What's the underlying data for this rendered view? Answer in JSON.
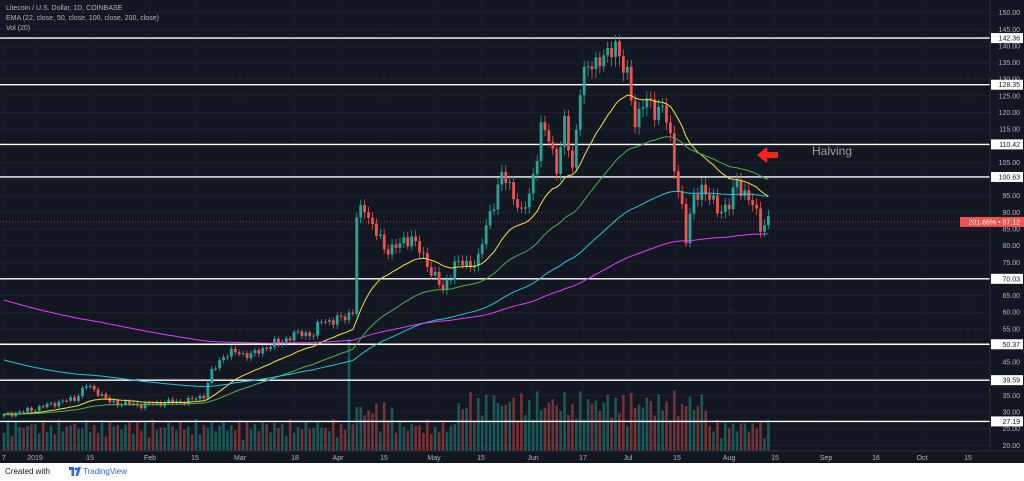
{
  "legend": {
    "symbol_line": "Litecoin / U.S. Dollar, 1D, COINBASE",
    "ema_line": "EMA (22, close, 50, close, 100, close, 200, close)",
    "vol_line": "Vol (20)"
  },
  "annotation": {
    "text": "Halving",
    "arrow_color": "#ff1e1e"
  },
  "footer": {
    "created_with": "Created with",
    "brand": "TradingView"
  },
  "colors": {
    "background": "#131722",
    "up": "#26a69a",
    "down": "#ef5350",
    "ema22": "#f1e23f",
    "ema50": "#4caf50",
    "ema100": "#26c6da",
    "ema200": "#e040fb",
    "level_line": "#ffffff"
  },
  "chart_data": {
    "type": "candlestick",
    "title": "Litecoin / U.S. Dollar, 1D, COINBASE",
    "y_ticks": [
      20,
      25,
      30,
      35,
      40,
      45,
      50,
      55,
      60,
      65,
      70,
      75,
      80,
      85,
      90,
      95,
      100,
      105,
      110,
      115,
      120,
      125,
      130,
      135,
      140,
      145,
      150
    ],
    "ylim": [
      18,
      152
    ],
    "x_ticks": [
      "7",
      "2019",
      "15",
      "Feb",
      "15",
      "Mar",
      "18",
      "Apr",
      "15",
      "May",
      "15",
      "Jun",
      "17",
      "Jul",
      "15",
      "Aug",
      "15",
      "Sep",
      "16",
      "Oct",
      "15"
    ],
    "horizontal_levels": [
      "142.36",
      "128.35",
      "110.42",
      "100.63",
      "70.03",
      "50.37",
      "39.59",
      "27.19"
    ],
    "last_price": {
      "percent": "201.66%",
      "price": "87.12"
    },
    "ohlc_source": "approximate daily closes read from chart",
    "close_path": [
      [
        0,
        29
      ],
      [
        8,
        31
      ],
      [
        14,
        33
      ],
      [
        18,
        34
      ],
      [
        21,
        38
      ],
      [
        24,
        36
      ],
      [
        27,
        33
      ],
      [
        35,
        32
      ],
      [
        42,
        33
      ],
      [
        46,
        33
      ],
      [
        51,
        35
      ],
      [
        53,
        42
      ],
      [
        56,
        47
      ],
      [
        59,
        48
      ],
      [
        63,
        47
      ],
      [
        66,
        49
      ],
      [
        72,
        52
      ],
      [
        76,
        54
      ],
      [
        79,
        53
      ],
      [
        81,
        58
      ],
      [
        84,
        57
      ],
      [
        87,
        59
      ],
      [
        89,
        60
      ],
      [
        90,
        88
      ],
      [
        92,
        92
      ],
      [
        94,
        86
      ],
      [
        97,
        79
      ],
      [
        101,
        80
      ],
      [
        104,
        83
      ],
      [
        107,
        76
      ],
      [
        110,
        71
      ],
      [
        112,
        66
      ],
      [
        115,
        75
      ],
      [
        118,
        74
      ],
      [
        121,
        76
      ],
      [
        124,
        90
      ],
      [
        127,
        101
      ],
      [
        130,
        96
      ],
      [
        132,
        89
      ],
      [
        134,
        95
      ],
      [
        137,
        115
      ],
      [
        139,
        112
      ],
      [
        141,
        104
      ],
      [
        143,
        116
      ],
      [
        145,
        103
      ],
      [
        147,
        128
      ],
      [
        149,
        133
      ],
      [
        152,
        137
      ],
      [
        154,
        136
      ],
      [
        156,
        141
      ],
      [
        157,
        138
      ],
      [
        159,
        130
      ],
      [
        161,
        117
      ],
      [
        163,
        124
      ],
      [
        166,
        120
      ],
      [
        168,
        123
      ],
      [
        169,
        118
      ],
      [
        171,
        103
      ],
      [
        173,
        92
      ],
      [
        174,
        82
      ],
      [
        176,
        94
      ],
      [
        178,
        98
      ],
      [
        180,
        94
      ],
      [
        182,
        91
      ],
      [
        185,
        92
      ],
      [
        187,
        99
      ],
      [
        189,
        96
      ],
      [
        191,
        92
      ],
      [
        193,
        86
      ],
      [
        195,
        88
      ]
    ],
    "emas": [
      {
        "name": "EMA 22",
        "period": 22,
        "values": "computed from closes"
      },
      {
        "name": "EMA 50",
        "period": 50,
        "values": "computed from closes"
      },
      {
        "name": "EMA 100",
        "period": 100,
        "values": "computed from closes"
      },
      {
        "name": "EMA 200",
        "period": 200,
        "values": "computed from closes"
      }
    ],
    "volume_series": "Vol (20)"
  }
}
